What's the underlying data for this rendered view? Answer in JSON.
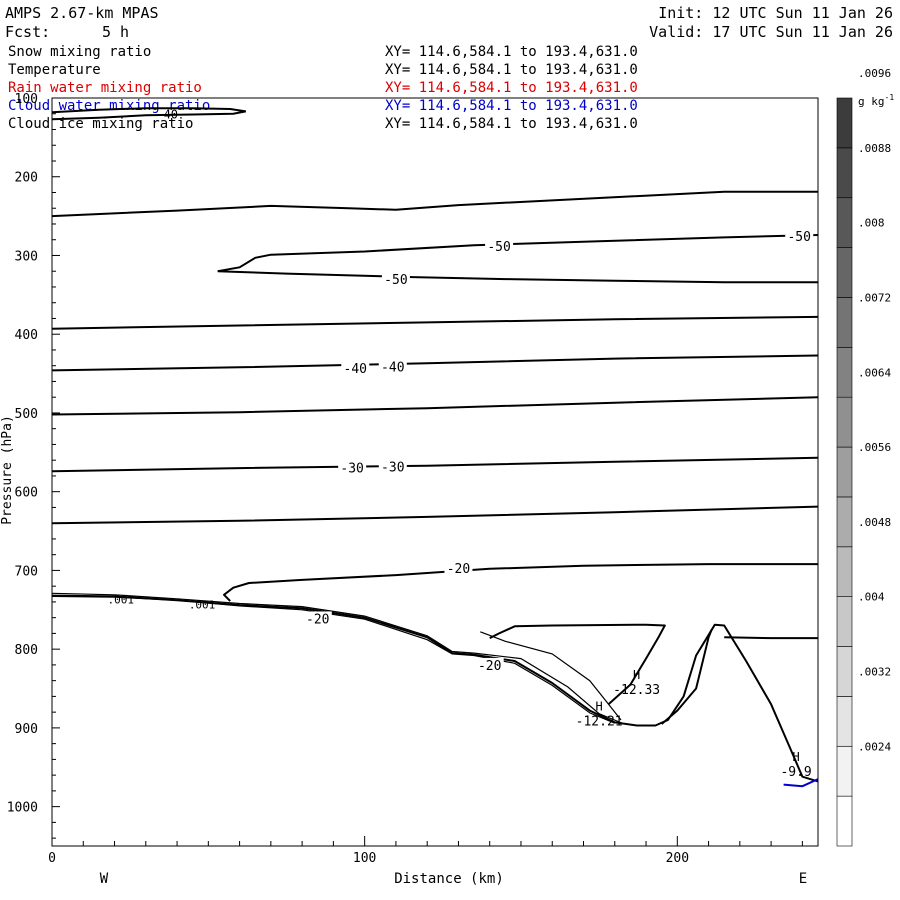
{
  "header": {
    "model": "AMPS 2.67-km MPAS",
    "fcst_label": "Fcst:",
    "fcst_value": "5 h",
    "init": "Init: 12 UTC Sun 11 Jan 26",
    "valid": "Valid: 17 UTC Sun 11 Jan 26"
  },
  "fields": [
    {
      "name": "Snow mixing ratio",
      "xy": "XY= 114.6,584.1 to 193.4,631.0",
      "color": "#000000"
    },
    {
      "name": "Temperature",
      "xy": "XY= 114.6,584.1 to 193.4,631.0",
      "color": "#000000"
    },
    {
      "name": "Rain water mixing ratio",
      "xy": "XY= 114.6,584.1 to 193.4,631.0",
      "color": "#dd0000"
    },
    {
      "name": "Cloud water mixing ratio",
      "xy": "XY= 114.6,584.1 to 193.4,631.0",
      "color": "#0000cc"
    },
    {
      "name": "Cloud ice mixing ratio",
      "xy": "XY= 114.6,584.1 to 193.4,631.0",
      "color": "#000000"
    }
  ],
  "chart_data": {
    "type": "line",
    "xlabel": "Distance (km)",
    "ylabel": "Pressure (hPa)",
    "xlim": [
      0,
      245
    ],
    "ylim": [
      1050,
      100
    ],
    "x_ticks": [
      "0",
      "100",
      "200"
    ],
    "y_ticks": [
      "200",
      "300",
      "400",
      "500",
      "600",
      "700",
      "800",
      "900",
      "1000"
    ],
    "y_top_label": "100",
    "west_label": "W",
    "east_label": "E",
    "grid": false,
    "colorbar": {
      "unit_base": "g kg",
      "unit_exp": "-1",
      "labels": [
        ".0024",
        ".0032",
        ".004",
        ".0048",
        ".0056",
        ".0064",
        ".0072",
        ".008",
        ".0088",
        ".0096"
      ],
      "colors": [
        "#ffffff",
        "#f2f2f2",
        "#e4e4e4",
        "#d6d6d6",
        "#c8c8c8",
        "#bababa",
        "#acacac",
        "#9e9e9e",
        "#909090",
        "#828282",
        "#747474",
        "#666666",
        "#585858",
        "#4a4a4a",
        "#3c3c3c"
      ]
    },
    "isotherms": [
      {
        "points": [
          [
            0,
            250
          ],
          [
            40,
            243
          ],
          [
            70,
            237
          ],
          [
            95,
            240
          ],
          [
            110,
            242
          ],
          [
            130,
            236
          ],
          [
            175,
            227
          ],
          [
            215,
            219
          ],
          [
            245,
            219
          ]
        ]
      },
      {
        "points": [
          [
            53,
            320
          ],
          [
            60,
            315
          ],
          [
            65,
            303
          ],
          [
            70,
            299
          ],
          [
            100,
            295
          ],
          [
            135,
            287
          ],
          [
            175,
            282
          ],
          [
            215,
            277
          ],
          [
            245,
            274
          ]
        ]
      },
      {
        "points": [
          [
            53,
            320
          ],
          [
            75,
            323
          ],
          [
            110,
            327
          ],
          [
            145,
            330
          ],
          [
            180,
            332
          ],
          [
            215,
            334
          ],
          [
            245,
            334
          ]
        ]
      },
      {
        "points": [
          [
            0,
            393
          ],
          [
            60,
            389
          ],
          [
            120,
            385
          ],
          [
            180,
            381
          ],
          [
            245,
            378
          ]
        ]
      },
      {
        "points": [
          [
            0,
            446
          ],
          [
            60,
            442
          ],
          [
            120,
            437
          ],
          [
            180,
            431
          ],
          [
            245,
            427
          ]
        ]
      },
      {
        "points": [
          [
            0,
            502
          ],
          [
            60,
            499
          ],
          [
            120,
            494
          ],
          [
            180,
            487
          ],
          [
            245,
            480
          ]
        ]
      },
      {
        "points": [
          [
            0,
            574
          ],
          [
            60,
            570
          ],
          [
            120,
            567
          ],
          [
            180,
            562
          ],
          [
            245,
            557
          ]
        ]
      },
      {
        "points": [
          [
            0,
            640
          ],
          [
            60,
            637
          ],
          [
            120,
            632
          ],
          [
            180,
            626
          ],
          [
            245,
            619
          ]
        ]
      },
      {
        "points": [
          [
            57,
            739
          ],
          [
            55,
            731
          ],
          [
            58,
            722
          ],
          [
            63,
            716
          ],
          [
            80,
            712
          ],
          [
            110,
            706
          ],
          [
            140,
            698
          ],
          [
            170,
            694
          ],
          [
            210,
            692
          ],
          [
            245,
            692
          ]
        ]
      },
      {
        "points": [
          [
            140,
            786
          ],
          [
            143,
            780
          ],
          [
            148,
            771
          ],
          [
            160,
            770
          ],
          [
            190,
            769
          ],
          [
            196,
            770
          ],
          [
            194,
            785
          ],
          [
            190,
            812
          ],
          [
            185,
            845
          ],
          [
            178,
            870
          ]
        ]
      },
      {
        "points": [
          [
            215,
            785
          ],
          [
            230,
            786
          ],
          [
            245,
            786
          ]
        ]
      },
      {
        "points": [
          [
            195,
            895
          ],
          [
            200,
            878
          ],
          [
            206,
            850
          ],
          [
            210,
            785
          ],
          [
            211,
            775
          ]
        ]
      }
    ],
    "temperature_labels": [
      {
        "x": 143,
        "p": 288,
        "text": "-50"
      },
      {
        "x": 239,
        "p": 275,
        "text": "-50"
      },
      {
        "x": 110,
        "p": 330,
        "text": "-50"
      },
      {
        "x": 97,
        "p": 443,
        "text": "-40"
      },
      {
        "x": 109,
        "p": 441,
        "text": "-40"
      },
      {
        "x": 96,
        "p": 569,
        "text": "-30"
      },
      {
        "x": 109,
        "p": 568,
        "text": "-30"
      },
      {
        "x": 130,
        "p": 697,
        "text": "-20"
      },
      {
        "x": 85,
        "p": 761,
        "text": "-20"
      },
      {
        "x": 140,
        "p": 820,
        "text": "-20"
      }
    ],
    "ice_contours": [
      {
        "points": [
          [
            0,
            118
          ],
          [
            15,
            115
          ],
          [
            30,
            113
          ],
          [
            45,
            113
          ],
          [
            57,
            114
          ],
          [
            62,
            117
          ],
          [
            58,
            120
          ],
          [
            45,
            121
          ],
          [
            30,
            122
          ],
          [
            15,
            125
          ],
          [
            0,
            127
          ]
        ],
        "label": "40",
        "label_x": 38,
        "label_p": 121
      }
    ],
    "snow_contours": [
      {
        "points": [
          [
            0,
            729
          ],
          [
            20,
            731
          ],
          [
            40,
            736
          ],
          [
            60,
            742
          ],
          [
            80,
            746
          ],
          [
            100,
            758
          ],
          [
            120,
            783
          ],
          [
            128,
            803
          ],
          [
            135,
            805
          ],
          [
            150,
            812
          ],
          [
            165,
            848
          ],
          [
            175,
            882
          ],
          [
            183,
            895
          ]
        ],
        "label": ".001",
        "label_x": 22,
        "label_p": 737
      },
      {
        "points": [
          [
            0,
            733
          ],
          [
            20,
            734
          ],
          [
            40,
            738
          ],
          [
            60,
            745
          ],
          [
            80,
            750
          ],
          [
            100,
            762
          ],
          [
            120,
            788
          ],
          [
            128,
            806
          ],
          [
            135,
            808
          ],
          [
            148,
            818
          ],
          [
            160,
            846
          ],
          [
            172,
            881
          ],
          [
            180,
            894
          ]
        ],
        "label": ".001",
        "label_x": 48,
        "label_p": 743
      },
      {
        "points": [
          [
            137,
            778
          ],
          [
            145,
            790
          ],
          [
            160,
            806
          ],
          [
            172,
            840
          ],
          [
            177,
            865
          ],
          [
            182,
            890
          ]
        ],
        "label": "",
        "label_x": 0,
        "label_p": 0
      }
    ],
    "terrain": {
      "points": [
        [
          0,
          732
        ],
        [
          20,
          733
        ],
        [
          40,
          738
        ],
        [
          60,
          744
        ],
        [
          80,
          748
        ],
        [
          100,
          760
        ],
        [
          120,
          785
        ],
        [
          128,
          805
        ],
        [
          135,
          807
        ],
        [
          148,
          815
        ],
        [
          160,
          843
        ],
        [
          172,
          878
        ],
        [
          180,
          893
        ],
        [
          187,
          897
        ],
        [
          193,
          897
        ],
        [
          197,
          890
        ],
        [
          202,
          860
        ],
        [
          206,
          808
        ],
        [
          212,
          769
        ],
        [
          215,
          770
        ],
        [
          222,
          815
        ],
        [
          230,
          870
        ],
        [
          236,
          925
        ],
        [
          240,
          962
        ],
        [
          245,
          968
        ]
      ]
    },
    "cloud_water": {
      "points": [
        [
          234,
          972
        ],
        [
          240,
          974
        ],
        [
          245,
          965
        ]
      ]
    },
    "extrema": [
      {
        "symbol": "H",
        "value": "-12.33",
        "x": 187,
        "p": 853
      },
      {
        "symbol": "H",
        "value": "-12.21",
        "x": 175,
        "p": 893
      },
      {
        "symbol": "H",
        "value": "-9.9",
        "x": 238,
        "p": 957
      }
    ]
  }
}
